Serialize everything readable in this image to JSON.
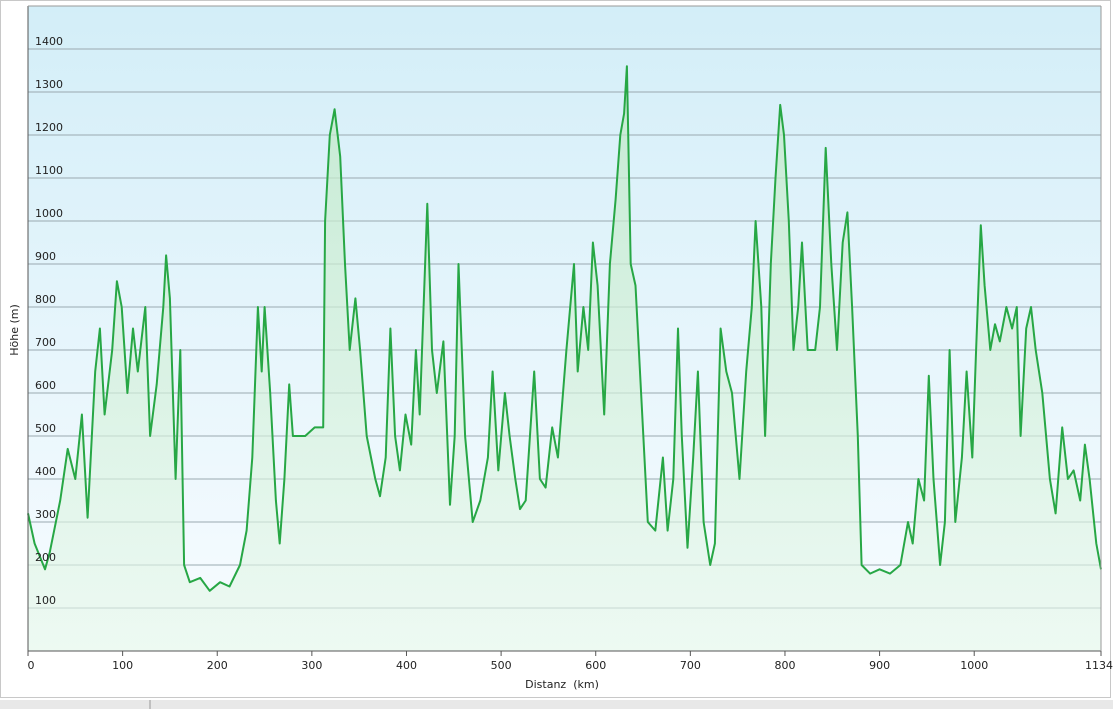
{
  "chart_data": {
    "type": "area",
    "y_label": "Höhe (m)",
    "x_label": "Distanz  (km)",
    "color": "#27a745",
    "grid": true,
    "xlim": [
      0,
      1134
    ],
    "ylim": [
      0,
      1500
    ],
    "xticks": [
      0,
      100,
      200,
      300,
      400,
      500,
      600,
      700,
      800,
      900,
      1000,
      1134
    ],
    "yticks": [
      100,
      200,
      300,
      400,
      500,
      600,
      700,
      800,
      900,
      1000,
      1100,
      1200,
      1300,
      1400
    ],
    "x": [
      0,
      7,
      18,
      23,
      34,
      42,
      50,
      57,
      63,
      71,
      76,
      81,
      89,
      94,
      99,
      105,
      111,
      116,
      124,
      129,
      136,
      143,
      146,
      150,
      156,
      161,
      165,
      171,
      182,
      192,
      203,
      213,
      224,
      231,
      237,
      243,
      247,
      250,
      256,
      262,
      266,
      271,
      276,
      280,
      293,
      303,
      312,
      314,
      319,
      324,
      330,
      335,
      340,
      346,
      351,
      358,
      367,
      372,
      378,
      383,
      388,
      393,
      399,
      405,
      410,
      414,
      422,
      427,
      432,
      439,
      446,
      451,
      455,
      462,
      470,
      478,
      486,
      491,
      497,
      504,
      509,
      515,
      520,
      526,
      535,
      541,
      547,
      554,
      560,
      569,
      577,
      581,
      587,
      592,
      597,
      602,
      609,
      615,
      621,
      626,
      630,
      633,
      637,
      642,
      648,
      655,
      663,
      671,
      676,
      682,
      687,
      691,
      697,
      703,
      708,
      714,
      721,
      726,
      732,
      738,
      744,
      752,
      759,
      765,
      769,
      775,
      779,
      785,
      790,
      795,
      799,
      804,
      809,
      814,
      818,
      824,
      832,
      837,
      843,
      849,
      855,
      861,
      866,
      871,
      877,
      881,
      890,
      900,
      911,
      922,
      930,
      935,
      941,
      947,
      952,
      957,
      964,
      969,
      974,
      980,
      987,
      992,
      998,
      1002,
      1007,
      1011,
      1017,
      1022,
      1027,
      1034,
      1040,
      1045,
      1049,
      1055,
      1060,
      1065,
      1072,
      1080,
      1086,
      1093,
      1099,
      1105,
      1112,
      1117,
      1122,
      1129,
      1134
    ],
    "values": [
      320,
      250,
      190,
      230,
      350,
      470,
      400,
      550,
      310,
      650,
      750,
      550,
      700,
      860,
      800,
      600,
      750,
      650,
      800,
      500,
      620,
      800,
      920,
      820,
      400,
      700,
      200,
      160,
      170,
      140,
      160,
      150,
      200,
      280,
      450,
      800,
      650,
      800,
      600,
      350,
      250,
      400,
      620,
      500,
      500,
      520,
      520,
      1000,
      1200,
      1260,
      1150,
      900,
      700,
      820,
      700,
      500,
      400,
      360,
      450,
      750,
      500,
      420,
      550,
      480,
      700,
      550,
      1040,
      700,
      600,
      720,
      340,
      500,
      900,
      500,
      300,
      350,
      450,
      650,
      420,
      600,
      500,
      400,
      330,
      350,
      650,
      400,
      380,
      520,
      450,
      700,
      900,
      650,
      800,
      700,
      950,
      850,
      550,
      900,
      1050,
      1200,
      1250,
      1360,
      900,
      850,
      600,
      300,
      280,
      450,
      280,
      400,
      750,
      500,
      240,
      450,
      650,
      300,
      200,
      250,
      750,
      650,
      600,
      400,
      650,
      800,
      1000,
      800,
      500,
      900,
      1100,
      1270,
      1200,
      1000,
      700,
      800,
      950,
      700,
      700,
      800,
      1170,
      900,
      700,
      950,
      1020,
      800,
      500,
      200,
      180,
      190,
      180,
      200,
      300,
      250,
      400,
      350,
      640,
      400,
      200,
      300,
      700,
      300,
      450,
      650,
      450,
      700,
      990,
      850,
      700,
      760,
      720,
      800,
      750,
      800,
      500,
      750,
      800,
      700,
      600,
      400,
      320,
      520,
      400,
      420,
      350,
      480,
      400,
      250,
      190
    ]
  }
}
